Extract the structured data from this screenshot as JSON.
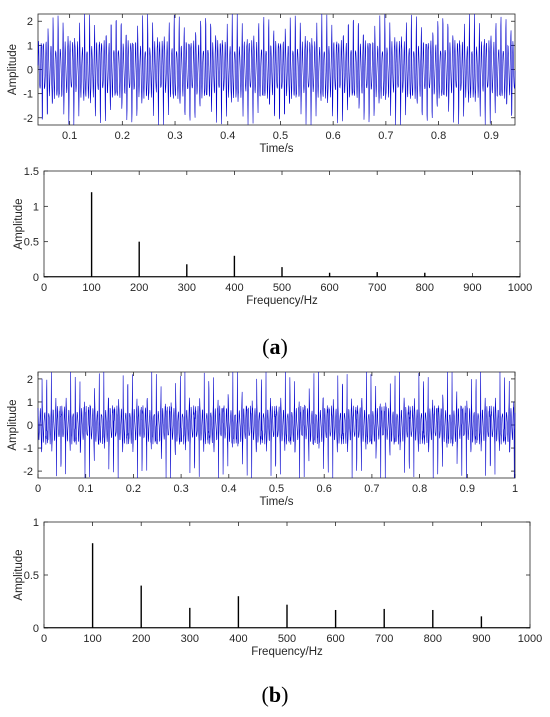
{
  "figure": {
    "panels": [
      {
        "prefix": "(",
        "letter": "a",
        "suffix": ")"
      },
      {
        "prefix": "(",
        "letter": "b",
        "suffix": ")"
      }
    ]
  },
  "chart_data": [
    {
      "id": "a-time",
      "type": "line",
      "title": "",
      "xlabel": "Time/s",
      "ylabel": "Amplitude",
      "xlim": [
        0.04,
        0.945
      ],
      "ylim": [
        -2.3,
        2.3
      ],
      "xticks": [
        0.1,
        0.2,
        0.3,
        0.4,
        0.5,
        0.6,
        0.7,
        0.8,
        0.9
      ],
      "xticklabels": [
        "0.1",
        "0.2",
        "0.3",
        "0.4",
        "0.5",
        "0.6",
        "0.7",
        "0.8",
        "0.9"
      ],
      "yticks": [
        -2,
        -1,
        0,
        1,
        2
      ],
      "yticklabels": [
        "-2",
        "-1",
        "0",
        "1",
        "2"
      ],
      "color": "#0000cc",
      "grid": false,
      "signal": {
        "fundamental_hz": 100,
        "sample_rate_hz": 2000,
        "harmonic_amplitudes": [
          1.2,
          0.5,
          0.2,
          0.3,
          0.15
        ]
      }
    },
    {
      "id": "a-spectrum",
      "type": "bar",
      "title": "",
      "xlabel": "Frequency/Hz",
      "ylabel": "Amplitude",
      "xlim": [
        0,
        1000
      ],
      "ylim": [
        0,
        1.5
      ],
      "xticks": [
        0,
        100,
        200,
        300,
        400,
        500,
        600,
        700,
        800,
        900,
        1000
      ],
      "xticklabels": [
        "0",
        "100",
        "200",
        "300",
        "400",
        "500",
        "600",
        "700",
        "800",
        "900",
        "1000"
      ],
      "yticks": [
        0,
        0.5,
        1,
        1.5
      ],
      "yticklabels": [
        "0",
        "0.5",
        "1",
        "1.5"
      ],
      "color": "#000000",
      "grid": false,
      "x": [
        100,
        200,
        300,
        400,
        500,
        600,
        700,
        800
      ],
      "values": [
        1.2,
        0.5,
        0.18,
        0.3,
        0.14,
        0.06,
        0.07,
        0.06
      ]
    },
    {
      "id": "b-time",
      "type": "line",
      "title": "",
      "xlabel": "Time/s",
      "ylabel": "Amplitude",
      "xlim": [
        0,
        1
      ],
      "ylim": [
        -2.3,
        2.3
      ],
      "xticks": [
        0,
        0.1,
        0.2,
        0.3,
        0.4,
        0.5,
        0.6,
        0.7,
        0.8,
        0.9,
        1
      ],
      "xticklabels": [
        "0",
        "0.1",
        "0.2",
        "0.3",
        "0.4",
        "0.5",
        "0.6",
        "0.7",
        "0.8",
        "0.9",
        "1"
      ],
      "yticks": [
        -2,
        -1,
        0,
        1,
        2
      ],
      "yticklabels": [
        "-2",
        "-1",
        "0",
        "1",
        "2"
      ],
      "color": "#0000cc",
      "grid": false,
      "signal": {
        "fundamental_hz": 100,
        "sample_rate_hz": 2000,
        "harmonic_amplitudes": [
          0.8,
          0.4,
          0.2,
          0.3,
          0.22,
          0.17,
          0.18,
          0.17,
          0.1
        ]
      }
    },
    {
      "id": "b-spectrum",
      "type": "bar",
      "title": "",
      "xlabel": "Frequency/Hz",
      "ylabel": "Amplitude",
      "xlim": [
        0,
        1000
      ],
      "ylim": [
        0,
        1
      ],
      "xticks": [
        0,
        100,
        200,
        300,
        400,
        500,
        600,
        700,
        800,
        900,
        1000
      ],
      "xticklabels": [
        "0",
        "100",
        "200",
        "300",
        "400",
        "500",
        "600",
        "700",
        "800",
        "900",
        "1000"
      ],
      "yticks": [
        0,
        0.5,
        1
      ],
      "yticklabels": [
        "0",
        "0.5",
        "1"
      ],
      "color": "#000000",
      "grid": false,
      "x": [
        100,
        200,
        300,
        400,
        500,
        600,
        700,
        800,
        900
      ],
      "values": [
        0.8,
        0.4,
        0.19,
        0.3,
        0.22,
        0.17,
        0.18,
        0.17,
        0.11
      ]
    }
  ]
}
